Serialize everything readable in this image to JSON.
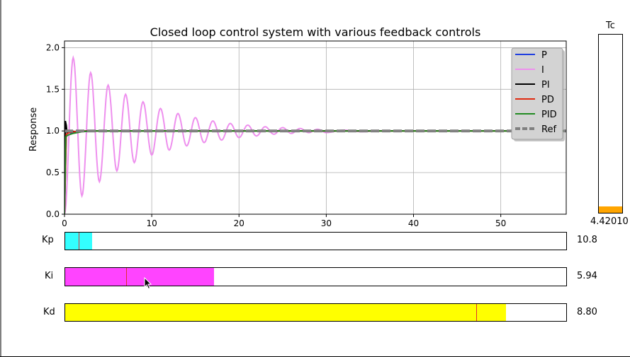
{
  "window": {
    "border_color": "#000000"
  },
  "plot": {
    "title": "Closed loop control system with various feedback controls",
    "ylabel": "Response",
    "legend_position": "top-right",
    "grid": true
  },
  "chart_data": {
    "type": "line",
    "title": "Closed loop control system with various feedback controls",
    "xlabel": "",
    "ylabel": "Response",
    "xlim": [
      0,
      57.5
    ],
    "ylim": [
      0,
      2.08
    ],
    "xticks": [
      "0",
      "10",
      "20",
      "30",
      "40",
      "50"
    ],
    "yticks": [
      "0.0",
      "0.5",
      "1.0",
      "1.5",
      "2.0"
    ],
    "grid": true,
    "legend": "top-right",
    "series": [
      {
        "name": "P",
        "color": "#1f3ee0",
        "style": "solid",
        "x": [
          0,
          0.2,
          0.4,
          0.8,
          1.5,
          3,
          6,
          10,
          20,
          57.5
        ],
        "y": [
          0,
          0.95,
          0.99,
          0.97,
          0.99,
          1.0,
          1.0,
          1.0,
          1.0,
          1.0
        ]
      },
      {
        "name": "I",
        "color": "#ee90ee",
        "style": "solid",
        "oscillation": true,
        "x": [
          0,
          1.0,
          2.0,
          3.0,
          4.0,
          5.0,
          6.0,
          7.0,
          8.0,
          9.0,
          10.0,
          11.0,
          12.0,
          13.0,
          14.0,
          15.0,
          16.0,
          17.0,
          18.0,
          19.0,
          20.0,
          21.0,
          22.0,
          23.0,
          24.0,
          25.0,
          26.0,
          27.0,
          28.0,
          29.0,
          30.0,
          32.0,
          34.0,
          36.0,
          40.0,
          45.0,
          50.0,
          57.5
        ],
        "y": [
          0,
          1.88,
          0.22,
          1.7,
          0.39,
          1.55,
          0.52,
          1.44,
          0.62,
          1.35,
          0.71,
          1.27,
          0.77,
          1.21,
          0.82,
          1.16,
          0.86,
          1.12,
          0.89,
          1.09,
          0.92,
          1.07,
          0.94,
          1.05,
          0.96,
          1.04,
          0.97,
          1.03,
          0.98,
          1.02,
          0.98,
          1.01,
          0.99,
          1.0,
          1.0,
          1.0,
          1.0,
          1.0
        ]
      },
      {
        "name": "PI",
        "color": "#000000",
        "style": "solid",
        "x": [
          0,
          0.1,
          0.2,
          0.3,
          0.5,
          0.8,
          1.2,
          2,
          4,
          8,
          57.5
        ],
        "y": [
          0,
          1.12,
          1.07,
          0.97,
          0.99,
          1.0,
          0.99,
          1.0,
          1.0,
          1.0,
          1.0
        ]
      },
      {
        "name": "PD",
        "color": "#e02a10",
        "style": "solid",
        "x": [
          0,
          0.2,
          0.5,
          1,
          3,
          57.5
        ],
        "y": [
          0,
          0.96,
          0.98,
          0.99,
          1.0,
          1.0
        ]
      },
      {
        "name": "PID",
        "color": "#228b22",
        "style": "solid",
        "x": [
          0,
          0.15,
          0.4,
          1.0,
          2.0,
          3.0,
          5.0,
          57.5
        ],
        "y": [
          0,
          0.93,
          0.95,
          0.97,
          0.99,
          1.0,
          1.0,
          1.0
        ]
      },
      {
        "name": "Ref",
        "color": "#808080",
        "style": "dashed",
        "x": [
          0,
          57.5
        ],
        "y": [
          1.0,
          1.0
        ]
      }
    ]
  },
  "sliders": [
    {
      "label": "Kp",
      "value_text": "10.8",
      "color": "#33ffff",
      "fill_fraction": 0.054,
      "marker_fraction": 0.027
    },
    {
      "label": "Ki",
      "value_text": "5.94",
      "color": "#ff44ff",
      "fill_fraction": 0.297,
      "marker_fraction": 0.121
    },
    {
      "label": "Kd",
      "value_text": "8.80",
      "color": "#ffff00",
      "fill_fraction": 0.88,
      "marker_fraction": 0.821
    }
  ],
  "tc": {
    "label": "Tc",
    "value_text": "4.42010",
    "color": "#ffa500",
    "fill_fraction": 0.035
  },
  "icons": {
    "cursor": "mouse-pointer-icon"
  }
}
